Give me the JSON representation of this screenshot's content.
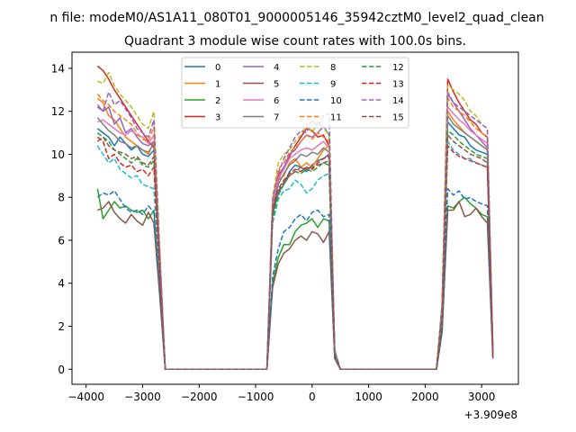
{
  "chart_data": {
    "type": "line",
    "suptitle": "n file: modeM0/AS1A11_080T01_9000005146_35942cztM0_level2_quad_clean",
    "title": "Quadrant 3 module wise count rates with 100.0s bins.",
    "xlabel": "",
    "ylabel": "",
    "x_offset_label": "+3.909e8",
    "xlim": [
      -4250,
      3650
    ],
    "ylim": [
      -0.7,
      14.75
    ],
    "x_ticks": [
      -4000,
      -3000,
      -2000,
      -1000,
      0,
      1000,
      2000,
      3000
    ],
    "x_tick_labels": [
      "−4000",
      "−3000",
      "−2000",
      "−1000",
      "0",
      "1000",
      "2000",
      "3000"
    ],
    "y_ticks": [
      0,
      2,
      4,
      6,
      8,
      10,
      12,
      14
    ],
    "y_tick_labels": [
      "0",
      "2",
      "4",
      "6",
      "8",
      "10",
      "12",
      "14"
    ],
    "grid": false,
    "legend": {
      "position": "upper-center",
      "columns": 4
    },
    "x": [
      -3800,
      -3700,
      -3600,
      -3500,
      -3400,
      -3300,
      -3200,
      -3100,
      -3000,
      -2900,
      -2800,
      -2700,
      -2600,
      -2500,
      -2400,
      -2300,
      -2200,
      -2100,
      -2000,
      -1900,
      -1800,
      -1700,
      -1600,
      -1500,
      -1400,
      -1300,
      -1200,
      -1100,
      -1000,
      -900,
      -800,
      -700,
      -600,
      -500,
      -400,
      -300,
      -200,
      -100,
      0,
      100,
      200,
      300,
      400,
      500,
      600,
      700,
      800,
      900,
      1000,
      1100,
      1200,
      1300,
      1400,
      1500,
      1600,
      1700,
      1800,
      1900,
      2000,
      2100,
      2200,
      2300,
      2400,
      2500,
      2600,
      2700,
      2800,
      2900,
      3000,
      3100,
      3200
    ],
    "series": [
      {
        "name": "0",
        "color": "#1f77b4",
        "dash": "solid",
        "values": [
          11.2,
          11.0,
          10.8,
          10.4,
          10.8,
          10.5,
          10.2,
          10.4,
          10.0,
          9.9,
          10.2,
          5.0,
          0,
          0,
          0,
          0,
          0,
          0,
          0,
          0,
          0,
          0,
          0,
          0,
          0,
          0,
          0,
          0,
          0,
          0,
          0,
          7.2,
          8.2,
          8.6,
          9.2,
          9.5,
          9.4,
          9.2,
          9.5,
          9.7,
          9.8,
          10.0,
          0.8,
          0,
          0,
          0,
          0,
          0,
          0,
          0,
          0,
          0,
          0,
          0,
          0,
          0,
          0,
          0,
          0,
          0,
          0,
          2.5,
          11.5,
          11.2,
          10.9,
          10.8,
          10.4,
          10.2,
          10.1,
          10.0,
          0.5
        ]
      },
      {
        "name": "1",
        "color": "#ff7f0e",
        "dash": "solid",
        "values": [
          12.6,
          12.4,
          11.8,
          11.6,
          11.2,
          10.8,
          10.6,
          10.4,
          10.2,
          10.0,
          10.6,
          5.2,
          0,
          0,
          0,
          0,
          0,
          0,
          0,
          0,
          0,
          0,
          0,
          0,
          0,
          0,
          0,
          0,
          0,
          0,
          0,
          7.6,
          8.8,
          9.0,
          9.6,
          9.8,
          9.4,
          9.6,
          9.4,
          9.8,
          10.2,
          10.4,
          0.7,
          0,
          0,
          0,
          0,
          0,
          0,
          0,
          0,
          0,
          0,
          0,
          0,
          0,
          0,
          0,
          0,
          0,
          0,
          2.7,
          12.0,
          11.6,
          11.3,
          11.0,
          10.8,
          10.6,
          10.4,
          10.2,
          0.7
        ]
      },
      {
        "name": "2",
        "color": "#2ca02c",
        "dash": "solid",
        "values": [
          8.4,
          7.0,
          7.4,
          7.8,
          7.5,
          7.6,
          7.4,
          7.3,
          7.4,
          7.0,
          7.4,
          3.8,
          0,
          0,
          0,
          0,
          0,
          0,
          0,
          0,
          0,
          0,
          0,
          0,
          0,
          0,
          0,
          0,
          0,
          0,
          0,
          4.0,
          5.2,
          5.8,
          5.8,
          6.4,
          6.7,
          6.8,
          7.0,
          6.6,
          7.0,
          6.9,
          0.5,
          0,
          0,
          0,
          0,
          0,
          0,
          0,
          0,
          0,
          0,
          0,
          0,
          0,
          0,
          0,
          0,
          0,
          0,
          1.8,
          7.6,
          7.5,
          7.8,
          8.0,
          7.7,
          7.5,
          7.2,
          7.1,
          0.6
        ]
      },
      {
        "name": "3",
        "color": "#d62728",
        "dash": "solid",
        "values": [
          14.1,
          13.9,
          13.5,
          13.0,
          12.6,
          12.2,
          11.8,
          11.4,
          11.0,
          10.6,
          10.3,
          5.6,
          0,
          0,
          0,
          0,
          0,
          0,
          0,
          0,
          0,
          0,
          0,
          0,
          0,
          0,
          0,
          0,
          0,
          0,
          0,
          7.8,
          9.0,
          9.4,
          9.9,
          10.4,
          10.8,
          11.2,
          11.1,
          10.8,
          10.9,
          10.4,
          0.8,
          0,
          0,
          0,
          0,
          0,
          0,
          0,
          0,
          0,
          0,
          0,
          0,
          0,
          0,
          0,
          0,
          0,
          0,
          3.0,
          13.5,
          12.9,
          12.4,
          12.0,
          11.6,
          11.4,
          11.0,
          10.8,
          0.8
        ]
      },
      {
        "name": "4",
        "color": "#9467bd",
        "dash": "solid",
        "values": [
          12.3,
          12.0,
          12.2,
          11.4,
          11.7,
          11.0,
          11.2,
          10.8,
          10.5,
          10.4,
          10.6,
          5.3,
          0,
          0,
          0,
          0,
          0,
          0,
          0,
          0,
          0,
          0,
          0,
          0,
          0,
          0,
          0,
          0,
          0,
          0,
          0,
          7.6,
          8.8,
          9.4,
          10.0,
          10.2,
          10.6,
          10.9,
          10.8,
          11.0,
          11.3,
          10.9,
          0.8,
          0,
          0,
          0,
          0,
          0,
          0,
          0,
          0,
          0,
          0,
          0,
          0,
          0,
          0,
          0,
          0,
          0,
          0,
          2.9,
          12.8,
          12.4,
          12.0,
          11.6,
          11.2,
          10.9,
          10.6,
          10.3,
          0.8
        ]
      },
      {
        "name": "5",
        "color": "#8c564b",
        "dash": "solid",
        "values": [
          7.4,
          7.5,
          7.8,
          7.3,
          7.0,
          6.8,
          7.2,
          6.9,
          6.7,
          7.3,
          6.8,
          3.5,
          0,
          0,
          0,
          0,
          0,
          0,
          0,
          0,
          0,
          0,
          0,
          0,
          0,
          0,
          0,
          0,
          0,
          0,
          0,
          3.8,
          4.9,
          5.4,
          5.6,
          6.0,
          6.2,
          6.0,
          6.4,
          6.3,
          5.9,
          6.4,
          0.5,
          0,
          0,
          0,
          0,
          0,
          0,
          0,
          0,
          0,
          0,
          0,
          0,
          0,
          0,
          0,
          0,
          0,
          0,
          1.7,
          7.4,
          7.4,
          7.8,
          7.1,
          7.2,
          7.5,
          7.1,
          6.8,
          0.5
        ]
      },
      {
        "name": "6",
        "color": "#e377c2",
        "dash": "solid",
        "values": [
          11.5,
          11.6,
          11.4,
          11.2,
          11.0,
          10.9,
          11.1,
          10.9,
          10.8,
          10.5,
          10.9,
          5.4,
          0,
          0,
          0,
          0,
          0,
          0,
          0,
          0,
          0,
          0,
          0,
          0,
          0,
          0,
          0,
          0,
          0,
          0,
          0,
          7.7,
          8.9,
          9.3,
          9.8,
          10.0,
          10.2,
          10.3,
          10.2,
          10.4,
          10.6,
          10.3,
          0.7,
          0,
          0,
          0,
          0,
          0,
          0,
          0,
          0,
          0,
          0,
          0,
          0,
          0,
          0,
          0,
          0,
          0,
          0,
          2.8,
          12.2,
          11.9,
          11.6,
          11.4,
          11.1,
          10.9,
          10.7,
          10.5,
          0.7
        ]
      },
      {
        "name": "7",
        "color": "#7f7f7f",
        "dash": "solid",
        "values": [
          11.7,
          11.4,
          11.1,
          10.9,
          10.6,
          10.5,
          10.3,
          10.4,
          10.2,
          10.1,
          10.5,
          5.2,
          0,
          0,
          0,
          0,
          0,
          0,
          0,
          0,
          0,
          0,
          0,
          0,
          0,
          0,
          0,
          0,
          0,
          0,
          0,
          7.5,
          8.6,
          9.1,
          9.5,
          9.7,
          10.0,
          9.9,
          10.1,
          10.0,
          10.3,
          10.1,
          0.7,
          0,
          0,
          0,
          0,
          0,
          0,
          0,
          0,
          0,
          0,
          0,
          0,
          0,
          0,
          0,
          0,
          0,
          0,
          2.7,
          11.8,
          11.4,
          11.2,
          11.0,
          10.8,
          10.6,
          10.4,
          10.2,
          0.7
        ]
      },
      {
        "name": "8",
        "color": "#bcbd22",
        "dash": "dashed",
        "values": [
          13.4,
          13.3,
          13.8,
          13.2,
          12.8,
          12.5,
          12.2,
          11.8,
          11.4,
          11.2,
          12.0,
          5.8,
          0,
          0,
          0,
          0,
          0,
          0,
          0,
          0,
          0,
          0,
          0,
          0,
          0,
          0,
          0,
          0,
          0,
          0,
          0,
          8.0,
          9.6,
          10.0,
          10.2,
          10.6,
          10.9,
          11.4,
          11.0,
          11.5,
          11.2,
          10.9,
          0.9,
          0,
          0,
          0,
          0,
          0,
          0,
          0,
          0,
          0,
          0,
          0,
          0,
          0,
          0,
          0,
          0,
          0,
          0,
          3.1,
          13.2,
          13.0,
          12.8,
          12.5,
          12.0,
          11.8,
          11.4,
          11.2,
          0.9
        ]
      },
      {
        "name": "9",
        "color": "#17becf",
        "dash": "dashed",
        "values": [
          10.4,
          10.0,
          9.6,
          9.8,
          9.3,
          9.1,
          8.9,
          9.0,
          8.6,
          8.5,
          8.4,
          4.3,
          0,
          0,
          0,
          0,
          0,
          0,
          0,
          0,
          0,
          0,
          0,
          0,
          0,
          0,
          0,
          0,
          0,
          0,
          0,
          6.8,
          7.9,
          8.3,
          8.4,
          8.8,
          8.6,
          8.2,
          8.4,
          8.8,
          9.0,
          9.1,
          0.6,
          0,
          0,
          0,
          0,
          0,
          0,
          0,
          0,
          0,
          0,
          0,
          0,
          0,
          0,
          0,
          0,
          0,
          0,
          2.3,
          10.6,
          10.2,
          10.0,
          9.8,
          9.8,
          9.6,
          9.5,
          9.4,
          0.6
        ]
      },
      {
        "name": "10",
        "color": "#1f77b4",
        "dash": "dashed",
        "values": [
          8.0,
          8.2,
          8.1,
          8.3,
          7.9,
          7.5,
          7.3,
          7.4,
          7.2,
          7.6,
          7.3,
          3.9,
          0,
          0,
          0,
          0,
          0,
          0,
          0,
          0,
          0,
          0,
          0,
          0,
          0,
          0,
          0,
          0,
          0,
          0,
          0,
          4.3,
          5.6,
          6.4,
          6.6,
          7.0,
          7.2,
          6.9,
          7.3,
          7.4,
          7.1,
          7.2,
          0.6,
          0,
          0,
          0,
          0,
          0,
          0,
          0,
          0,
          0,
          0,
          0,
          0,
          0,
          0,
          0,
          0,
          0,
          0,
          1.9,
          8.4,
          8.1,
          8.3,
          7.9,
          8.0,
          7.8,
          7.7,
          7.6,
          0.5
        ]
      },
      {
        "name": "11",
        "color": "#ff7f0e",
        "dash": "dashed",
        "values": [
          12.8,
          12.5,
          12.3,
          12.0,
          11.8,
          11.6,
          11.4,
          11.0,
          10.7,
          10.6,
          11.3,
          5.4,
          0,
          0,
          0,
          0,
          0,
          0,
          0,
          0,
          0,
          0,
          0,
          0,
          0,
          0,
          0,
          0,
          0,
          0,
          0,
          7.9,
          9.3,
          9.6,
          10.1,
          10.3,
          10.6,
          10.9,
          10.7,
          11.0,
          10.8,
          10.6,
          0.8,
          0,
          0,
          0,
          0,
          0,
          0,
          0,
          0,
          0,
          0,
          0,
          0,
          0,
          0,
          0,
          0,
          0,
          0,
          2.9,
          12.6,
          12.2,
          12.0,
          11.8,
          11.5,
          11.2,
          11.0,
          10.8,
          0.8
        ]
      },
      {
        "name": "12",
        "color": "#2ca02c",
        "dash": "dashed",
        "values": [
          11.0,
          10.8,
          10.6,
          10.2,
          10.0,
          9.8,
          9.6,
          9.8,
          9.5,
          9.4,
          9.7,
          4.8,
          0,
          0,
          0,
          0,
          0,
          0,
          0,
          0,
          0,
          0,
          0,
          0,
          0,
          0,
          0,
          0,
          0,
          0,
          0,
          7.0,
          8.1,
          8.6,
          9.0,
          9.2,
          9.1,
          9.3,
          9.2,
          9.4,
          9.6,
          9.5,
          0.7,
          0,
          0,
          0,
          0,
          0,
          0,
          0,
          0,
          0,
          0,
          0,
          0,
          0,
          0,
          0,
          0,
          0,
          0,
          2.6,
          11.1,
          10.9,
          10.6,
          10.4,
          10.2,
          10.0,
          9.9,
          9.8,
          0.7
        ]
      },
      {
        "name": "13",
        "color": "#d62728",
        "dash": "dashed",
        "values": [
          10.8,
          10.6,
          9.8,
          10.0,
          9.6,
          9.4,
          9.5,
          9.2,
          9.3,
          9.0,
          9.4,
          4.6,
          0,
          0,
          0,
          0,
          0,
          0,
          0,
          0,
          0,
          0,
          0,
          0,
          0,
          0,
          0,
          0,
          0,
          0,
          0,
          7.4,
          8.4,
          8.8,
          9.1,
          9.3,
          9.2,
          9.4,
          9.3,
          9.6,
          9.8,
          9.9,
          0.7,
          0,
          0,
          0,
          0,
          0,
          0,
          0,
          0,
          0,
          0,
          0,
          0,
          0,
          0,
          0,
          0,
          0,
          0,
          2.4,
          10.4,
          10.1,
          9.9,
          9.8,
          9.7,
          9.6,
          9.5,
          9.4,
          0.6
        ]
      },
      {
        "name": "14",
        "color": "#9467bd",
        "dash": "dashed",
        "values": [
          12.2,
          12.0,
          12.9,
          12.3,
          12.5,
          12.1,
          11.7,
          11.2,
          11.0,
          10.8,
          11.6,
          5.6,
          0,
          0,
          0,
          0,
          0,
          0,
          0,
          0,
          0,
          0,
          0,
          0,
          0,
          0,
          0,
          0,
          0,
          0,
          0,
          7.9,
          9.1,
          9.8,
          10.3,
          10.8,
          11.1,
          11.0,
          11.6,
          11.3,
          11.8,
          11.9,
          0.9,
          0,
          0,
          0,
          0,
          0,
          0,
          0,
          0,
          0,
          0,
          0,
          0,
          0,
          0,
          0,
          0,
          0,
          0,
          3.0,
          12.9,
          12.4,
          12.2,
          12.0,
          11.8,
          11.6,
          11.4,
          11.2,
          0.8
        ]
      },
      {
        "name": "15",
        "color": "#8c564b",
        "dash": "dashed",
        "values": [
          10.6,
          10.8,
          10.4,
          10.2,
          10.1,
          10.0,
          9.8,
          9.9,
          9.6,
          9.5,
          9.9,
          4.9,
          0,
          0,
          0,
          0,
          0,
          0,
          0,
          0,
          0,
          0,
          0,
          0,
          0,
          0,
          0,
          0,
          0,
          0,
          0,
          7.3,
          8.3,
          8.7,
          9.0,
          9.2,
          9.4,
          9.3,
          9.4,
          9.5,
          9.6,
          9.7,
          0.7,
          0,
          0,
          0,
          0,
          0,
          0,
          0,
          0,
          0,
          0,
          0,
          0,
          0,
          0,
          0,
          0,
          0,
          0,
          2.5,
          10.9,
          10.6,
          10.4,
          10.2,
          10.0,
          9.9,
          9.8,
          9.6,
          0.7
        ]
      }
    ]
  }
}
